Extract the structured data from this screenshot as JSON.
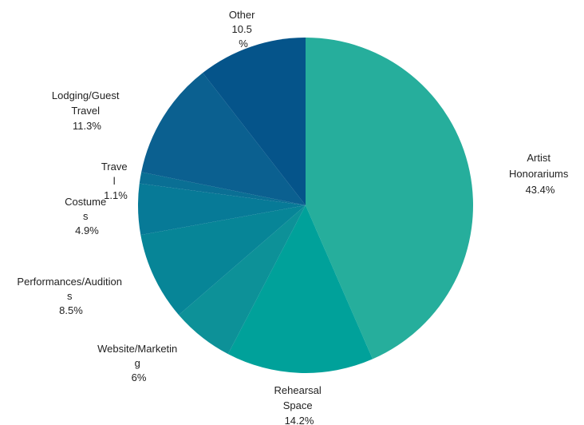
{
  "chart_data": {
    "type": "pie",
    "title": "",
    "slices": [
      {
        "name": "Artist Honorariums",
        "value": 43.4,
        "label": "Artist Honorariums 43.4%",
        "color": "#26AE9C"
      },
      {
        "name": "Rehearsal Space",
        "value": 14.2,
        "label": "Rehearsal Space 14.2%",
        "color": "#00A19A"
      },
      {
        "name": "Website/Marketing",
        "value": 6,
        "label": "Website/Marketing 6%",
        "color": "#0D9198"
      },
      {
        "name": "Performances/Auditions",
        "value": 8.5,
        "label": "Performances/Auditions 8.5%",
        "color": "#078597"
      },
      {
        "name": "Costumes",
        "value": 4.9,
        "label": "Costumes 4.9%",
        "color": "#077A97"
      },
      {
        "name": "Travel",
        "value": 1.1,
        "label": "Travel 1.1%",
        "color": "#0A6F94"
      },
      {
        "name": "Lodging/Guest Travel",
        "value": 11.3,
        "label": "Lodging/Guest Travel 11.3%",
        "color": "#0B6090"
      },
      {
        "name": "Other",
        "value": 10.5,
        "label": "Other 10.5%",
        "color": "#05548A"
      }
    ]
  },
  "labels": {
    "artist": [
      "Artist",
      "Honorariums",
      "43.4%"
    ],
    "rehearsal": [
      "Rehearsal",
      "Space",
      "14.2%"
    ],
    "website": [
      "Website/Marketin",
      "g",
      "6%"
    ],
    "performances": [
      "Performances/Audition",
      "s",
      "8.5%"
    ],
    "costumes": [
      "Costume",
      "s",
      "4.9%"
    ],
    "travel": [
      "Trave",
      "l",
      "1.1%"
    ],
    "lodging": [
      "Lodging/Guest",
      "Travel",
      "11.3%"
    ],
    "other": [
      "Other",
      "10.5",
      "%"
    ]
  }
}
